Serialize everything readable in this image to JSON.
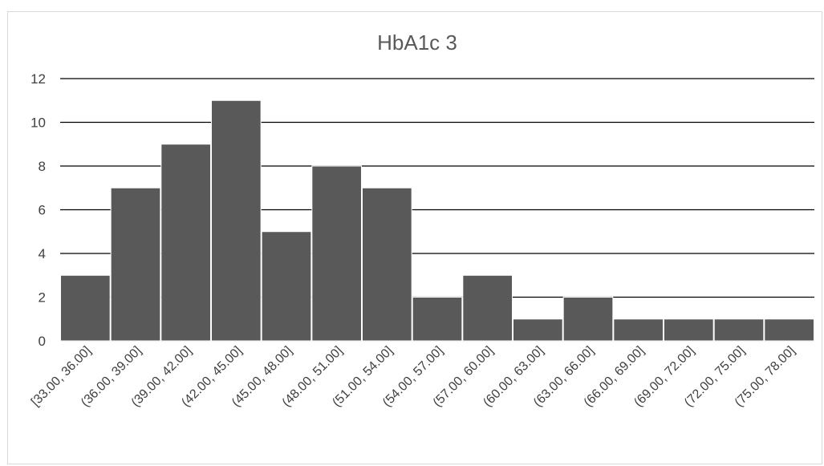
{
  "chart_data": {
    "type": "bar",
    "title": "HbA1c 3",
    "xlabel": "",
    "ylabel": "",
    "ylim": [
      0,
      12
    ],
    "yticks": [
      0,
      2,
      4,
      6,
      8,
      10,
      12
    ],
    "grid": true,
    "legend": "none",
    "bar_color": "#595959",
    "grid_color": "#000000",
    "categories": [
      "[33.00, 36.00]",
      "(36.00, 39.00]",
      "(39.00, 42.00]",
      "(42.00, 45.00]",
      "(45.00, 48.00]",
      "(48.00, 51.00]",
      "(51.00, 54.00]",
      "(54.00, 57.00]",
      "(57.00, 60.00]",
      "(60.00, 63.00]",
      "(63.00, 66.00]",
      "(66.00, 69.00]",
      "(69.00, 72.00]",
      "(72.00, 75.00]",
      "(75.00, 78.00]"
    ],
    "values": [
      3,
      7,
      9,
      11,
      5,
      8,
      7,
      2,
      3,
      1,
      2,
      1,
      1,
      1,
      1
    ]
  }
}
